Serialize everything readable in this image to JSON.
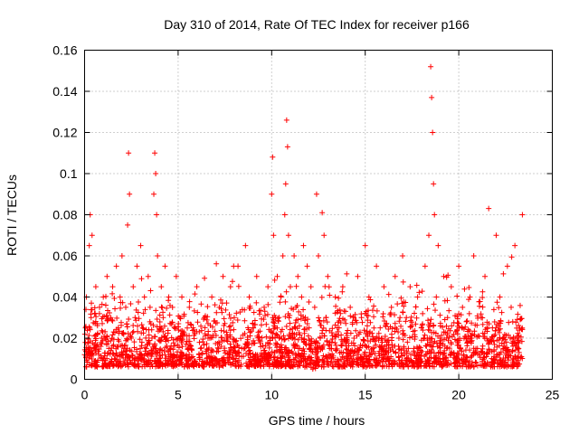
{
  "chart_data": {
    "type": "scatter",
    "title": "Day 310 of 2014, Rate Of TEC Index for receiver p166",
    "xlabel": "GPS time / hours",
    "ylabel": "ROTI / TECUs",
    "xlim": [
      0,
      25
    ],
    "ylim": [
      0,
      0.16
    ],
    "x_ticks": [
      0,
      5,
      10,
      15,
      20,
      25
    ],
    "x_tick_labels": [
      "0",
      "5",
      "10",
      "15",
      "20",
      "25"
    ],
    "y_ticks": [
      0,
      0.02,
      0.04,
      0.06,
      0.08,
      0.1,
      0.12,
      0.14,
      0.16
    ],
    "y_tick_labels": [
      "0",
      "0.02",
      "0.04",
      "0.06",
      "0.08",
      "0.1",
      "0.12",
      "0.14",
      "0.16"
    ],
    "grid": true,
    "marker": "plus",
    "color": "#ff0000",
    "series": [
      {
        "name": "ROTI",
        "x": [
          0.0,
          0.05,
          0.1,
          0.2,
          0.25,
          0.3,
          0.35,
          0.4,
          0.5,
          0.6,
          0.7,
          0.8,
          0.9,
          1.0,
          1.1,
          1.2,
          1.3,
          1.4,
          1.5,
          1.6,
          1.7,
          1.8,
          1.9,
          2.0,
          2.1,
          2.2,
          2.3,
          2.35,
          2.4,
          2.5,
          2.6,
          2.7,
          2.8,
          2.9,
          3.0,
          3.1,
          3.2,
          3.3,
          3.4,
          3.5,
          3.6,
          3.7,
          3.75,
          3.8,
          3.85,
          3.9,
          4.0,
          4.1,
          4.2,
          4.3,
          4.4,
          4.5,
          4.6,
          4.7,
          4.8,
          4.9,
          5.0,
          5.2,
          5.4,
          5.6,
          5.8,
          6.0,
          6.2,
          6.4,
          6.6,
          6.8,
          7.0,
          7.2,
          7.4,
          7.6,
          7.8,
          8.0,
          8.2,
          8.4,
          8.6,
          8.8,
          9.0,
          9.2,
          9.4,
          9.6,
          9.8,
          9.9,
          10.0,
          10.05,
          10.1,
          10.2,
          10.3,
          10.4,
          10.5,
          10.6,
          10.7,
          10.75,
          10.8,
          10.85,
          10.9,
          11.0,
          11.1,
          11.2,
          11.3,
          11.4,
          11.5,
          11.6,
          11.7,
          11.8,
          11.9,
          12.0,
          12.1,
          12.2,
          12.3,
          12.4,
          12.5,
          12.6,
          12.7,
          12.8,
          12.9,
          13.0,
          13.2,
          13.4,
          13.6,
          13.8,
          14.0,
          14.2,
          14.4,
          14.6,
          14.8,
          15.0,
          15.2,
          15.4,
          15.6,
          15.8,
          16.0,
          16.2,
          16.4,
          16.6,
          16.8,
          17.0,
          17.2,
          17.4,
          17.6,
          17.8,
          18.0,
          18.2,
          18.4,
          18.5,
          18.55,
          18.6,
          18.65,
          18.7,
          18.8,
          18.9,
          19.0,
          19.2,
          19.4,
          19.6,
          19.8,
          20.0,
          20.2,
          20.4,
          20.6,
          20.8,
          21.0,
          21.2,
          21.4,
          21.6,
          21.8,
          22.0,
          22.2,
          22.4,
          22.6,
          22.8,
          23.0,
          23.2,
          23.4
        ],
        "y": [
          0.012,
          0.025,
          0.04,
          0.018,
          0.065,
          0.08,
          0.03,
          0.07,
          0.015,
          0.045,
          0.022,
          0.035,
          0.01,
          0.04,
          0.02,
          0.05,
          0.015,
          0.03,
          0.045,
          0.01,
          0.055,
          0.025,
          0.04,
          0.06,
          0.015,
          0.035,
          0.075,
          0.11,
          0.09,
          0.02,
          0.045,
          0.03,
          0.055,
          0.01,
          0.065,
          0.025,
          0.04,
          0.015,
          0.05,
          0.035,
          0.02,
          0.09,
          0.11,
          0.1,
          0.08,
          0.06,
          0.01,
          0.045,
          0.03,
          0.055,
          0.02,
          0.04,
          0.015,
          0.035,
          0.025,
          0.05,
          0.02,
          0.04,
          0.01,
          0.035,
          0.025,
          0.045,
          0.015,
          0.03,
          0.02,
          0.04,
          0.01,
          0.035,
          0.05,
          0.02,
          0.045,
          0.03,
          0.055,
          0.015,
          0.065,
          0.04,
          0.025,
          0.05,
          0.01,
          0.035,
          0.045,
          0.02,
          0.09,
          0.108,
          0.07,
          0.03,
          0.05,
          0.02,
          0.04,
          0.06,
          0.08,
          0.095,
          0.126,
          0.113,
          0.07,
          0.045,
          0.02,
          0.06,
          0.035,
          0.05,
          0.015,
          0.04,
          0.065,
          0.03,
          0.055,
          0.025,
          0.045,
          0.005,
          0.035,
          0.09,
          0.06,
          0.02,
          0.081,
          0.07,
          0.03,
          0.05,
          0.015,
          0.04,
          0.025,
          0.045,
          0.01,
          0.035,
          0.02,
          0.05,
          0.03,
          0.065,
          0.04,
          0.015,
          0.055,
          0.025,
          0.045,
          0.01,
          0.035,
          0.05,
          0.02,
          0.06,
          0.03,
          0.045,
          0.015,
          0.04,
          0.025,
          0.055,
          0.07,
          0.152,
          0.137,
          0.12,
          0.095,
          0.08,
          0.04,
          0.065,
          0.02,
          0.05,
          0.03,
          0.045,
          0.01,
          0.055,
          0.035,
          0.02,
          0.04,
          0.06,
          0.015,
          0.03,
          0.05,
          0.083,
          0.025,
          0.07,
          0.04,
          0.02,
          0.055,
          0.035,
          0.065,
          0.015,
          0.08
        ]
      }
    ]
  }
}
